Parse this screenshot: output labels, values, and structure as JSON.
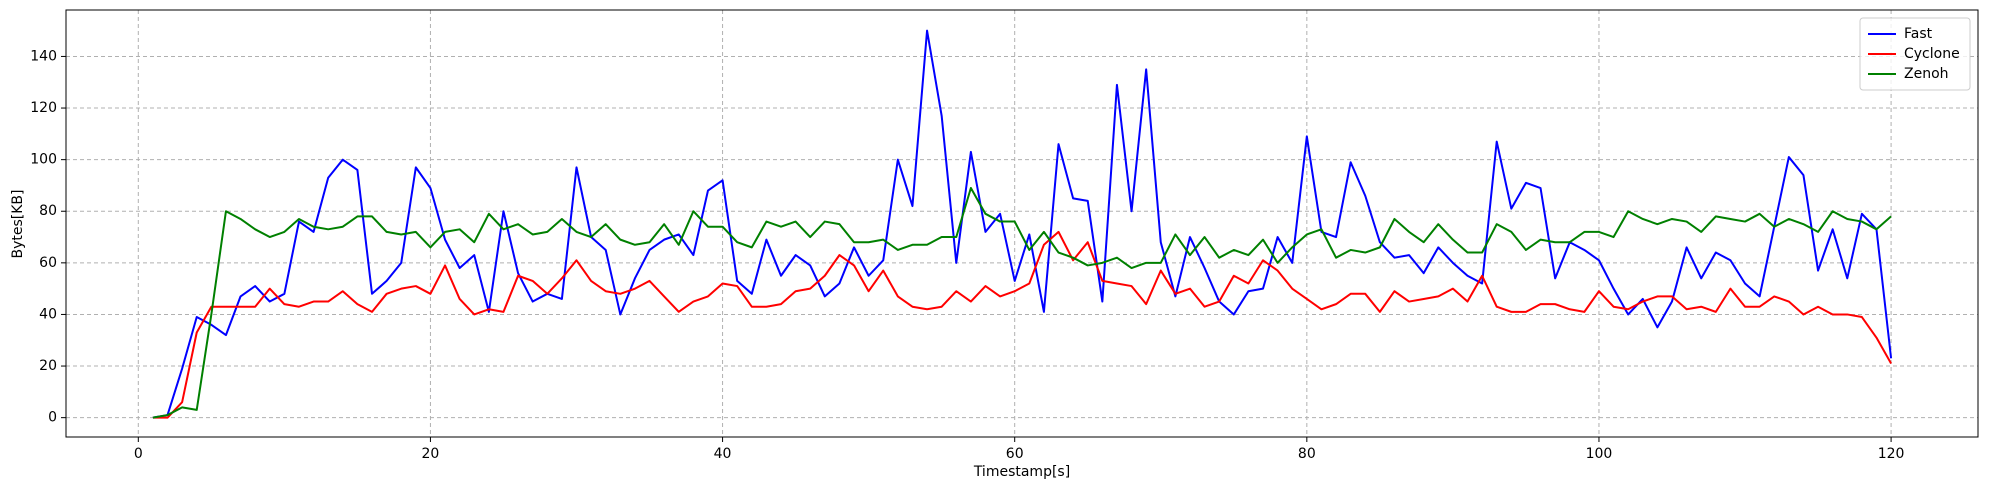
{
  "chart_data": {
    "type": "line",
    "xlabel": "Timestamp[s]",
    "ylabel": "Bytes[KB]",
    "x": [
      1,
      2,
      3,
      4,
      5,
      6,
      7,
      8,
      9,
      10,
      11,
      12,
      13,
      14,
      15,
      16,
      17,
      18,
      19,
      20,
      21,
      22,
      23,
      24,
      25,
      26,
      27,
      28,
      29,
      30,
      31,
      32,
      33,
      34,
      35,
      36,
      37,
      38,
      39,
      40,
      41,
      42,
      43,
      44,
      45,
      46,
      47,
      48,
      49,
      50,
      51,
      52,
      53,
      54,
      55,
      56,
      57,
      58,
      59,
      60,
      61,
      62,
      63,
      64,
      65,
      66,
      67,
      68,
      69,
      70,
      71,
      72,
      73,
      74,
      75,
      76,
      77,
      78,
      79,
      80,
      81,
      82,
      83,
      84,
      85,
      86,
      87,
      88,
      89,
      90,
      91,
      92,
      93,
      94,
      95,
      96,
      97,
      98,
      99,
      100,
      101,
      102,
      103,
      104,
      105,
      106,
      107,
      108,
      109,
      110,
      111,
      112,
      113,
      114,
      115,
      116,
      117,
      118,
      119,
      120
    ],
    "series": [
      {
        "name": "Fast",
        "color": "#0000ff",
        "values": [
          0,
          1,
          19,
          39,
          36,
          32,
          47,
          51,
          45,
          48,
          76,
          72,
          93,
          100,
          96,
          48,
          53,
          60,
          97,
          89,
          69,
          58,
          63,
          41,
          80,
          56,
          45,
          48,
          46,
          97,
          70,
          65,
          40,
          54,
          65,
          69,
          71,
          63,
          88,
          92,
          53,
          48,
          69,
          55,
          63,
          59,
          47,
          52,
          66,
          55,
          61,
          100,
          82,
          150,
          117,
          60,
          103,
          72,
          79,
          53,
          71,
          41,
          106,
          85,
          84,
          45,
          129,
          80,
          135,
          68,
          47,
          70,
          58,
          45,
          40,
          49,
          50,
          70,
          60,
          109,
          72,
          70,
          99,
          86,
          68,
          62,
          63,
          56,
          66,
          60,
          55,
          52,
          107,
          81,
          91,
          89,
          54,
          68,
          65,
          61,
          50,
          40,
          46,
          35,
          45,
          66,
          54,
          64,
          61,
          52,
          47,
          74,
          101,
          94,
          57,
          73,
          54,
          79,
          73,
          23
        ]
      },
      {
        "name": "Cyclone",
        "color": "#ff0000",
        "values": [
          0,
          0,
          6,
          33,
          43,
          43,
          43,
          43,
          50,
          44,
          43,
          45,
          45,
          49,
          44,
          41,
          48,
          50,
          51,
          48,
          59,
          46,
          40,
          42,
          41,
          55,
          53,
          48,
          54,
          61,
          53,
          49,
          48,
          50,
          53,
          47,
          41,
          45,
          47,
          52,
          51,
          43,
          43,
          44,
          49,
          50,
          55,
          63,
          59,
          49,
          57,
          47,
          43,
          42,
          43,
          49,
          45,
          51,
          47,
          49,
          52,
          67,
          72,
          61,
          68,
          53,
          52,
          51,
          44,
          57,
          48,
          50,
          43,
          45,
          55,
          52,
          61,
          57,
          50,
          46,
          42,
          44,
          48,
          48,
          41,
          49,
          45,
          46,
          47,
          50,
          45,
          55,
          43,
          41,
          41,
          44,
          44,
          42,
          41,
          49,
          43,
          42,
          45,
          47,
          47,
          42,
          43,
          41,
          50,
          43,
          43,
          47,
          45,
          40,
          43,
          40,
          40,
          39,
          31,
          21
        ]
      },
      {
        "name": "Zenoh",
        "color": "#008000",
        "values": [
          0,
          1,
          4,
          3,
          40,
          80,
          77,
          73,
          70,
          72,
          77,
          74,
          73,
          74,
          78,
          78,
          72,
          71,
          72,
          66,
          72,
          73,
          68,
          79,
          73,
          75,
          71,
          72,
          77,
          72,
          70,
          75,
          69,
          67,
          68,
          75,
          67,
          80,
          74,
          74,
          68,
          66,
          76,
          74,
          76,
          70,
          76,
          75,
          68,
          68,
          69,
          65,
          67,
          67,
          70,
          70,
          89,
          79,
          76,
          76,
          65,
          72,
          64,
          62,
          59,
          60,
          62,
          58,
          60,
          60,
          71,
          63,
          70,
          62,
          65,
          63,
          69,
          60,
          66,
          71,
          73,
          62,
          65,
          64,
          66,
          77,
          72,
          68,
          75,
          69,
          64,
          64,
          75,
          72,
          65,
          69,
          68,
          68,
          72,
          72,
          70,
          80,
          77,
          75,
          77,
          76,
          72,
          78,
          77,
          76,
          79,
          74,
          77,
          75,
          72,
          80,
          77,
          76,
          73,
          78
        ]
      }
    ],
    "xlim": [
      -4.95,
      125.95
    ],
    "xticks": [
      0,
      20,
      40,
      60,
      80,
      100,
      120
    ],
    "ylim": [
      -7.5,
      158
    ],
    "yticks": [
      0,
      20,
      40,
      60,
      80,
      100,
      120,
      140
    ],
    "grid": true,
    "legend": "upper right"
  }
}
